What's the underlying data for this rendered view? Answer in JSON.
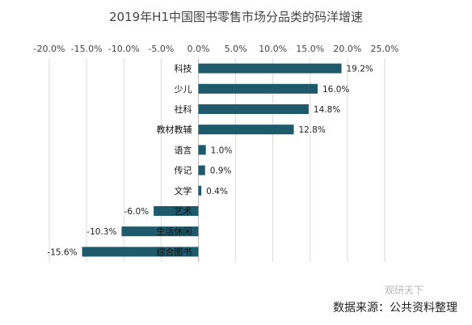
{
  "chart_data": {
    "type": "bar",
    "orientation": "horizontal",
    "title": "2019年H1中国图书零售市场分品类的码洋增速",
    "categories": [
      "科技",
      "少儿",
      "社科",
      "教材教辅",
      "语言",
      "传记",
      "文学",
      "艺术",
      "生活休闲",
      "综合图书"
    ],
    "values": [
      19.2,
      16.0,
      14.8,
      12.8,
      1.0,
      0.9,
      0.4,
      -6.0,
      -10.3,
      -15.6
    ],
    "value_labels": [
      "19.2%",
      "16.0%",
      "14.8%",
      "12.8%",
      "1.0%",
      "0.9%",
      "0.4%",
      "-6.0%",
      "-10.3%",
      "-15.6%"
    ],
    "xlim": [
      -20,
      25
    ],
    "x_ticks": [
      -20,
      -15,
      -10,
      -5,
      0,
      5,
      10,
      15,
      20,
      25
    ],
    "x_tick_labels": [
      "-20.0%",
      "-15.0%",
      "-10.0%",
      "-5.0%",
      "0.0%",
      "5.0%",
      "10.0%",
      "15.0%",
      "20.0%",
      "25.0%"
    ],
    "x_axis_position": "top",
    "grid": "vertical",
    "legend": "none",
    "bar_color": "#1e5a6c"
  },
  "source_text": "数据来源：公共资料整理",
  "watermark_text": "观研天下"
}
